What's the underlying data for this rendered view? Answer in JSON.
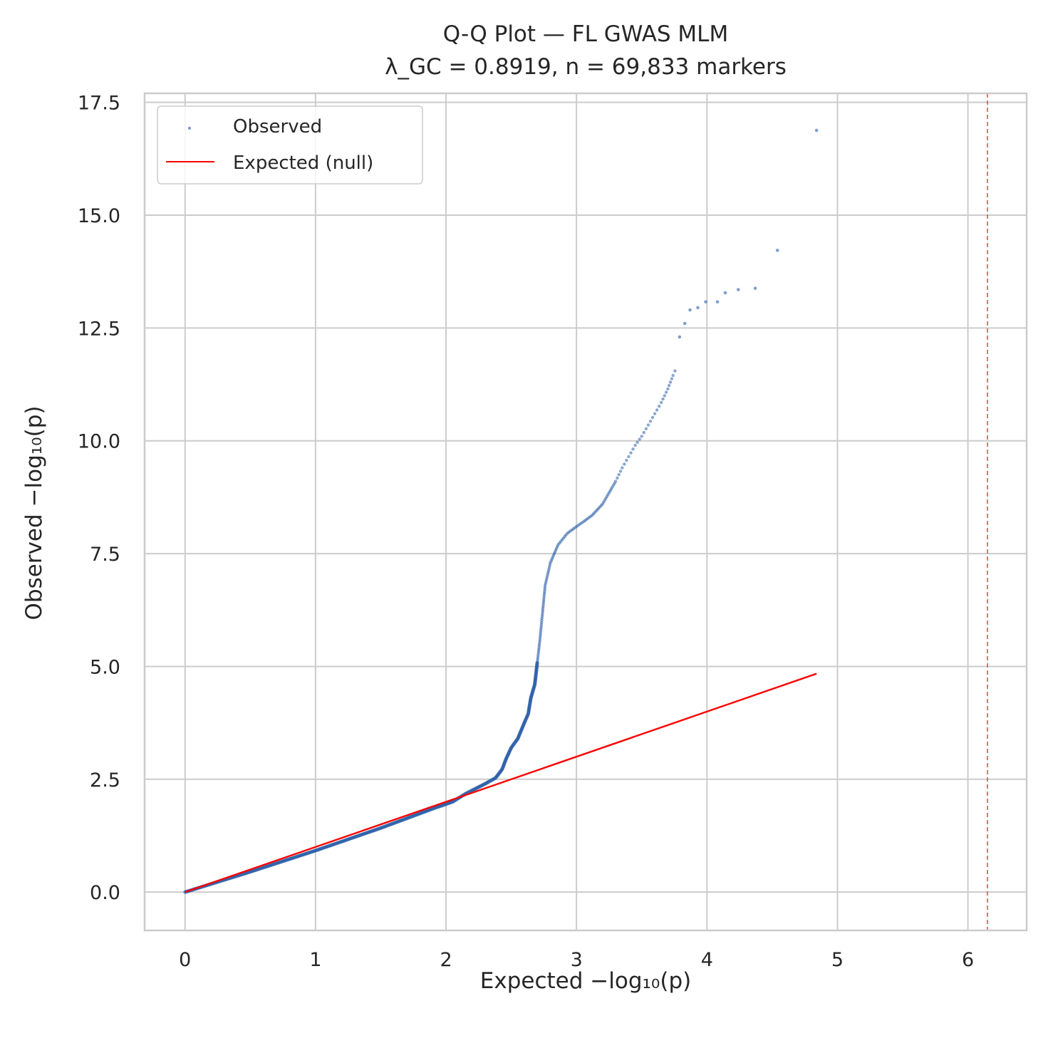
{
  "chart_data": {
    "type": "scatter",
    "title": "Q-Q Plot — FL GWAS MLM",
    "subtitle": "λ_GC = 0.8919, n = 69,833 markers",
    "xlabel": "Expected −log₁₀(p)",
    "ylabel": "Observed −log₁₀(p)",
    "xlim": [
      -0.31,
      6.45
    ],
    "ylim": [
      -0.85,
      17.7
    ],
    "x_ticks": [
      0,
      1,
      2,
      3,
      4,
      5,
      6
    ],
    "x_tick_labels": [
      "0",
      "1",
      "2",
      "3",
      "4",
      "5",
      "6"
    ],
    "y_ticks": [
      0,
      2.5,
      5,
      7.5,
      10,
      12.5,
      15,
      17.5
    ],
    "y_tick_labels": [
      "0.0",
      "2.5",
      "5.0",
      "7.5",
      "10.0",
      "12.5",
      "15.0",
      "17.5"
    ],
    "grid": true,
    "legend_position": "top-left",
    "colors": {
      "observed": "#2b5fa8",
      "expected": "#ff0000",
      "threshold": "#e84c4c",
      "grid": "#cccccc",
      "spine": "#cccccc"
    },
    "series": [
      {
        "name": "Observed",
        "kind": "scatter",
        "curve_points": [
          [
            0,
            0
          ],
          [
            0.5,
            0.45
          ],
          [
            1,
            0.92
          ],
          [
            1.5,
            1.42
          ],
          [
            1.9,
            1.85
          ],
          [
            2.05,
            2.0
          ],
          [
            2.15,
            2.18
          ],
          [
            2.3,
            2.4
          ],
          [
            2.38,
            2.53
          ],
          [
            2.43,
            2.72
          ],
          [
            2.46,
            2.95
          ],
          [
            2.5,
            3.2
          ],
          [
            2.55,
            3.4
          ],
          [
            2.6,
            3.75
          ],
          [
            2.63,
            3.95
          ],
          [
            2.65,
            4.3
          ],
          [
            2.68,
            4.6
          ],
          [
            2.7,
            5.1
          ],
          [
            2.72,
            5.6
          ],
          [
            2.74,
            6.2
          ],
          [
            2.76,
            6.8
          ],
          [
            2.8,
            7.3
          ],
          [
            2.86,
            7.7
          ],
          [
            2.93,
            7.95
          ],
          [
            3.0,
            8.1
          ],
          [
            3.05,
            8.2
          ],
          [
            3.12,
            8.35
          ],
          [
            3.2,
            8.6
          ],
          [
            3.25,
            8.85
          ],
          [
            3.3,
            9.1
          ],
          [
            3.35,
            9.4
          ],
          [
            3.4,
            9.65
          ],
          [
            3.45,
            9.9
          ],
          [
            3.5,
            10.1
          ],
          [
            3.55,
            10.35
          ],
          [
            3.6,
            10.6
          ],
          [
            3.65,
            10.85
          ],
          [
            3.7,
            11.15
          ],
          [
            3.74,
            11.45
          ],
          [
            3.77,
            11.65
          ]
        ],
        "outliers": [
          [
            3.79,
            12.3
          ],
          [
            3.83,
            12.6
          ],
          [
            3.87,
            12.9
          ],
          [
            3.93,
            12.95
          ],
          [
            3.99,
            13.08
          ],
          [
            4.08,
            13.08
          ],
          [
            4.14,
            13.28
          ],
          [
            4.24,
            13.35
          ],
          [
            4.37,
            13.38
          ],
          [
            4.54,
            14.22
          ],
          [
            4.84,
            16.88
          ]
        ]
      },
      {
        "name": "Expected (null)",
        "kind": "line",
        "x": [
          0,
          4.84
        ],
        "y": [
          0,
          4.84
        ]
      }
    ],
    "threshold_line": {
      "x": 6.15,
      "style": "dashed"
    }
  }
}
